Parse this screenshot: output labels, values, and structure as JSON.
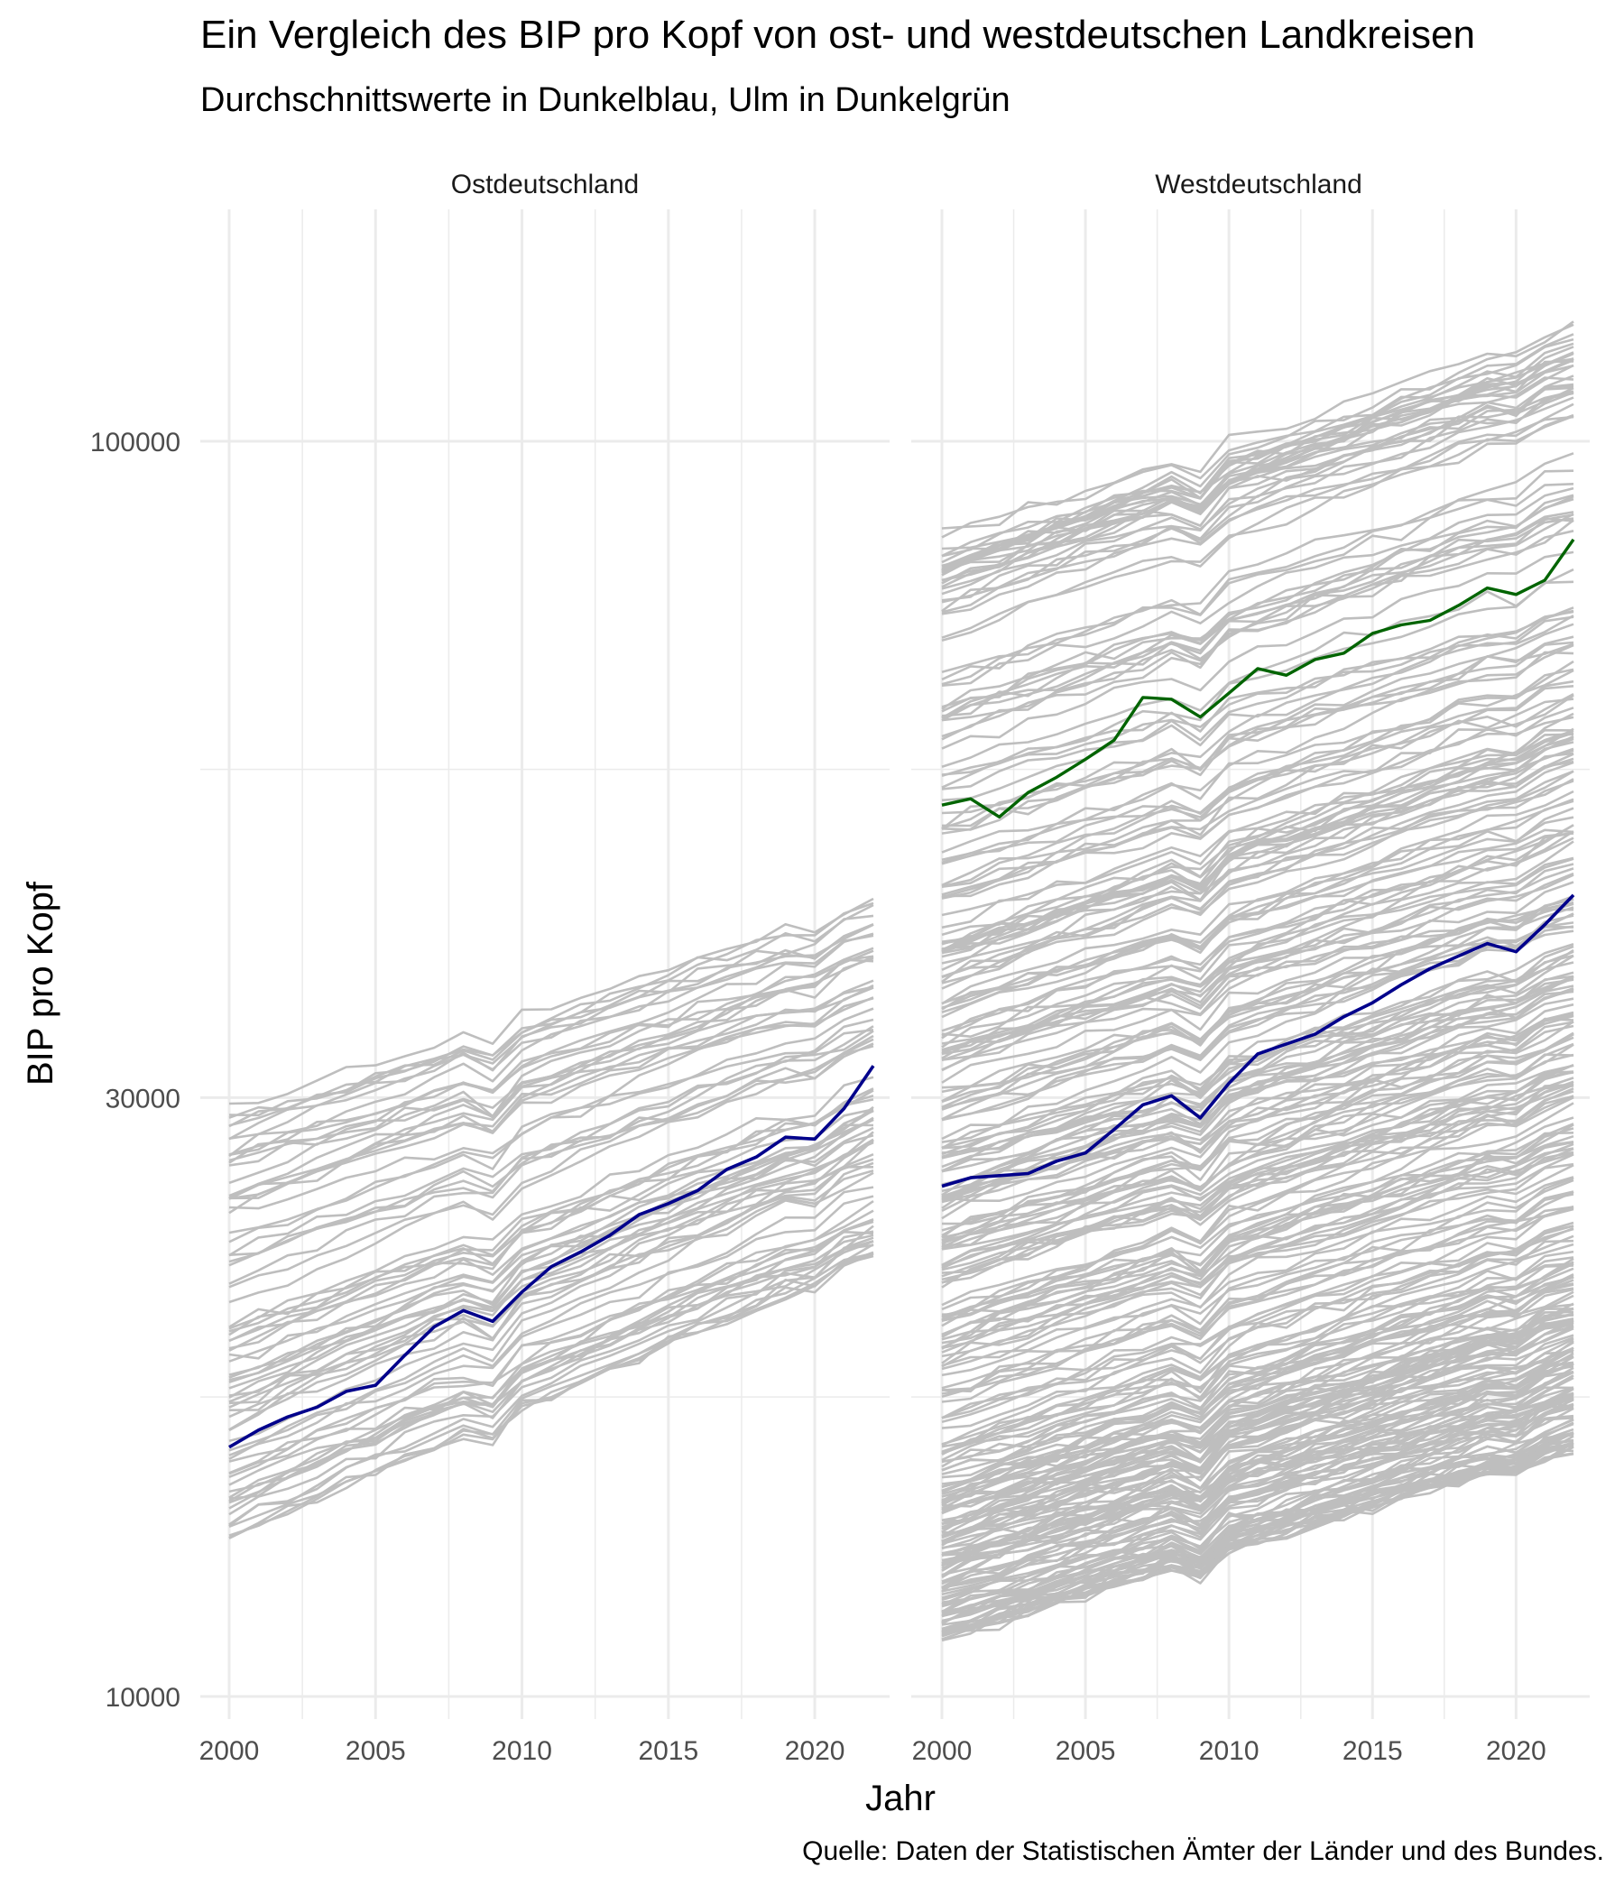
{
  "chart_data": {
    "type": "line",
    "title": "Ein Vergleich des BIP pro Kopf von ost- und westdeutschen Landkreisen",
    "subtitle": "Durchschnittswerte in Dunkelblau, Ulm in Dunkelgrün",
    "xlabel": "Jahr",
    "ylabel": "BIP pro Kopf",
    "caption": "Quelle: Daten der Statistischen Ämter der Länder und des Bundes.",
    "y_scale": "log10",
    "ylim": [
      10000,
      160000
    ],
    "xlim": [
      1999,
      2023
    ],
    "y_ticks": [
      10000,
      30000,
      100000
    ],
    "y_tick_labels": [
      "10000",
      "30000",
      "100000"
    ],
    "x_ticks": [
      2000,
      2005,
      2010,
      2015,
      2020
    ],
    "x_tick_labels": [
      "2000",
      "2005",
      "2010",
      "2015",
      "2020"
    ],
    "grid": true,
    "colors": {
      "background_series": "#bebebe",
      "average": "#00008b",
      "ulm": "#006400",
      "grid": "#ebebeb"
    },
    "years": [
      2000,
      2001,
      2002,
      2003,
      2004,
      2005,
      2006,
      2007,
      2008,
      2009,
      2010,
      2011,
      2012,
      2013,
      2014,
      2015,
      2016,
      2017,
      2018,
      2019,
      2020,
      2021,
      2022
    ],
    "panels": [
      {
        "name": "Ostdeutschland",
        "series_count": 76,
        "range_2000": [
          13400,
          29900
        ],
        "range_2022": [
          22400,
          43000
        ],
        "average": [
          15800,
          16300,
          16700,
          17000,
          17500,
          17700,
          18700,
          19700,
          20300,
          19900,
          21000,
          22000,
          22600,
          23300,
          24200,
          24700,
          25300,
          26300,
          26900,
          27900,
          27800,
          29400,
          31800
        ]
      },
      {
        "name": "Westdeutschland",
        "series_count": 324,
        "range_2000": [
          11100,
          85000
        ],
        "range_2022": [
          15800,
          123000
        ],
        "average": [
          25500,
          25900,
          26000,
          26100,
          26700,
          27100,
          28300,
          29600,
          30100,
          28900,
          30800,
          32500,
          33100,
          33700,
          34800,
          35700,
          36900,
          38000,
          38900,
          39800,
          39200,
          41200,
          43500
        ],
        "ulm": [
          51300,
          51900,
          50200,
          52500,
          54000,
          55800,
          57800,
          62500,
          62300,
          60300,
          63000,
          65900,
          65100,
          67000,
          67800,
          70300,
          71400,
          72000,
          74000,
          76400,
          75500,
          77500,
          83500
        ]
      }
    ]
  }
}
